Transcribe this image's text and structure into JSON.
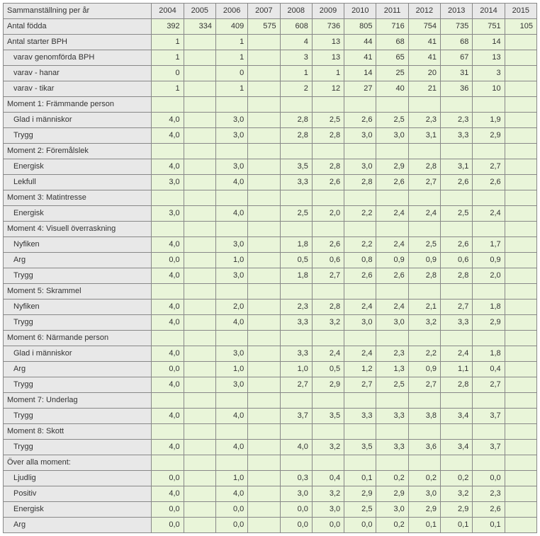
{
  "header": {
    "label": "Sammanställning per år",
    "years": [
      "2004",
      "2005",
      "2006",
      "2007",
      "2008",
      "2009",
      "2010",
      "2011",
      "2012",
      "2013",
      "2014",
      "2015"
    ]
  },
  "rows": [
    {
      "label": "Antal födda",
      "indent": 0,
      "vals": [
        "392",
        "334",
        "409",
        "575",
        "608",
        "736",
        "805",
        "716",
        "754",
        "735",
        "751",
        "105"
      ]
    },
    {
      "label": "Antal starter BPH",
      "indent": 0,
      "vals": [
        "1",
        "",
        "1",
        "",
        "4",
        "13",
        "44",
        "68",
        "41",
        "68",
        "14",
        ""
      ]
    },
    {
      "label": "varav genomförda BPH",
      "indent": 1,
      "vals": [
        "1",
        "",
        "1",
        "",
        "3",
        "13",
        "41",
        "65",
        "41",
        "67",
        "13",
        ""
      ]
    },
    {
      "label": "varav - hanar",
      "indent": 1,
      "vals": [
        "0",
        "",
        "0",
        "",
        "1",
        "1",
        "14",
        "25",
        "20",
        "31",
        "3",
        ""
      ]
    },
    {
      "label": "varav - tikar",
      "indent": 1,
      "vals": [
        "1",
        "",
        "1",
        "",
        "2",
        "12",
        "27",
        "40",
        "21",
        "36",
        "10",
        ""
      ]
    },
    {
      "label": "Moment 1: Främmande person",
      "indent": 0,
      "vals": [
        "",
        "",
        "",
        "",
        "",
        "",
        "",
        "",
        "",
        "",
        "",
        ""
      ]
    },
    {
      "label": "Glad i människor",
      "indent": 1,
      "vals": [
        "4,0",
        "",
        "3,0",
        "",
        "2,8",
        "2,5",
        "2,6",
        "2,5",
        "2,3",
        "2,3",
        "1,9",
        ""
      ]
    },
    {
      "label": "Trygg",
      "indent": 1,
      "vals": [
        "4,0",
        "",
        "3,0",
        "",
        "2,8",
        "2,8",
        "3,0",
        "3,0",
        "3,1",
        "3,3",
        "2,9",
        ""
      ]
    },
    {
      "label": "Moment 2: Föremålslek",
      "indent": 0,
      "vals": [
        "",
        "",
        "",
        "",
        "",
        "",
        "",
        "",
        "",
        "",
        "",
        ""
      ]
    },
    {
      "label": "Energisk",
      "indent": 1,
      "vals": [
        "4,0",
        "",
        "3,0",
        "",
        "3,5",
        "2,8",
        "3,0",
        "2,9",
        "2,8",
        "3,1",
        "2,7",
        ""
      ]
    },
    {
      "label": "Lekfull",
      "indent": 1,
      "vals": [
        "3,0",
        "",
        "4,0",
        "",
        "3,3",
        "2,6",
        "2,8",
        "2,6",
        "2,7",
        "2,6",
        "2,6",
        ""
      ]
    },
    {
      "label": "Moment 3: Matintresse",
      "indent": 0,
      "vals": [
        "",
        "",
        "",
        "",
        "",
        "",
        "",
        "",
        "",
        "",
        "",
        ""
      ]
    },
    {
      "label": "Energisk",
      "indent": 1,
      "vals": [
        "3,0",
        "",
        "4,0",
        "",
        "2,5",
        "2,0",
        "2,2",
        "2,4",
        "2,4",
        "2,5",
        "2,4",
        ""
      ]
    },
    {
      "label": "Moment 4: Visuell överraskning",
      "indent": 0,
      "vals": [
        "",
        "",
        "",
        "",
        "",
        "",
        "",
        "",
        "",
        "",
        "",
        ""
      ]
    },
    {
      "label": "Nyfiken",
      "indent": 1,
      "vals": [
        "4,0",
        "",
        "3,0",
        "",
        "1,8",
        "2,6",
        "2,2",
        "2,4",
        "2,5",
        "2,6",
        "1,7",
        ""
      ]
    },
    {
      "label": "Arg",
      "indent": 1,
      "vals": [
        "0,0",
        "",
        "1,0",
        "",
        "0,5",
        "0,6",
        "0,8",
        "0,9",
        "0,9",
        "0,6",
        "0,9",
        ""
      ]
    },
    {
      "label": "Trygg",
      "indent": 1,
      "vals": [
        "4,0",
        "",
        "3,0",
        "",
        "1,8",
        "2,7",
        "2,6",
        "2,6",
        "2,8",
        "2,8",
        "2,0",
        ""
      ]
    },
    {
      "label": "Moment 5: Skrammel",
      "indent": 0,
      "vals": [
        "",
        "",
        "",
        "",
        "",
        "",
        "",
        "",
        "",
        "",
        "",
        ""
      ]
    },
    {
      "label": "Nyfiken",
      "indent": 1,
      "vals": [
        "4,0",
        "",
        "2,0",
        "",
        "2,3",
        "2,8",
        "2,4",
        "2,4",
        "2,1",
        "2,7",
        "1,8",
        ""
      ]
    },
    {
      "label": "Trygg",
      "indent": 1,
      "vals": [
        "4,0",
        "",
        "4,0",
        "",
        "3,3",
        "3,2",
        "3,0",
        "3,0",
        "3,2",
        "3,3",
        "2,9",
        ""
      ]
    },
    {
      "label": "Moment 6: Närmande person",
      "indent": 0,
      "vals": [
        "",
        "",
        "",
        "",
        "",
        "",
        "",
        "",
        "",
        "",
        "",
        ""
      ]
    },
    {
      "label": "Glad i människor",
      "indent": 1,
      "vals": [
        "4,0",
        "",
        "3,0",
        "",
        "3,3",
        "2,4",
        "2,4",
        "2,3",
        "2,2",
        "2,4",
        "1,8",
        ""
      ]
    },
    {
      "label": "Arg",
      "indent": 1,
      "vals": [
        "0,0",
        "",
        "1,0",
        "",
        "1,0",
        "0,5",
        "1,2",
        "1,3",
        "0,9",
        "1,1",
        "0,4",
        ""
      ]
    },
    {
      "label": "Trygg",
      "indent": 1,
      "vals": [
        "4,0",
        "",
        "3,0",
        "",
        "2,7",
        "2,9",
        "2,7",
        "2,5",
        "2,7",
        "2,8",
        "2,7",
        ""
      ]
    },
    {
      "label": "Moment 7: Underlag",
      "indent": 0,
      "vals": [
        "",
        "",
        "",
        "",
        "",
        "",
        "",
        "",
        "",
        "",
        "",
        ""
      ]
    },
    {
      "label": "Trygg",
      "indent": 1,
      "vals": [
        "4,0",
        "",
        "4,0",
        "",
        "3,7",
        "3,5",
        "3,3",
        "3,3",
        "3,8",
        "3,4",
        "3,7",
        ""
      ]
    },
    {
      "label": "Moment 8: Skott",
      "indent": 0,
      "vals": [
        "",
        "",
        "",
        "",
        "",
        "",
        "",
        "",
        "",
        "",
        "",
        ""
      ]
    },
    {
      "label": "Trygg",
      "indent": 1,
      "vals": [
        "4,0",
        "",
        "4,0",
        "",
        "4,0",
        "3,2",
        "3,5",
        "3,3",
        "3,6",
        "3,4",
        "3,7",
        ""
      ]
    },
    {
      "label": "Över alla moment:",
      "indent": 0,
      "vals": [
        "",
        "",
        "",
        "",
        "",
        "",
        "",
        "",
        "",
        "",
        "",
        ""
      ]
    },
    {
      "label": "Ljudlig",
      "indent": 1,
      "vals": [
        "0,0",
        "",
        "1,0",
        "",
        "0,3",
        "0,4",
        "0,1",
        "0,2",
        "0,2",
        "0,2",
        "0,0",
        ""
      ]
    },
    {
      "label": "Positiv",
      "indent": 1,
      "vals": [
        "4,0",
        "",
        "4,0",
        "",
        "3,0",
        "3,2",
        "2,9",
        "2,9",
        "3,0",
        "3,2",
        "2,3",
        ""
      ]
    },
    {
      "label": "Energisk",
      "indent": 1,
      "vals": [
        "0,0",
        "",
        "0,0",
        "",
        "0,0",
        "3,0",
        "2,5",
        "3,0",
        "2,9",
        "2,9",
        "2,6",
        ""
      ]
    },
    {
      "label": "Arg",
      "indent": 1,
      "vals": [
        "0,0",
        "",
        "0,0",
        "",
        "0,0",
        "0,0",
        "0,0",
        "0,2",
        "0,1",
        "0,1",
        "0,1",
        ""
      ]
    }
  ]
}
